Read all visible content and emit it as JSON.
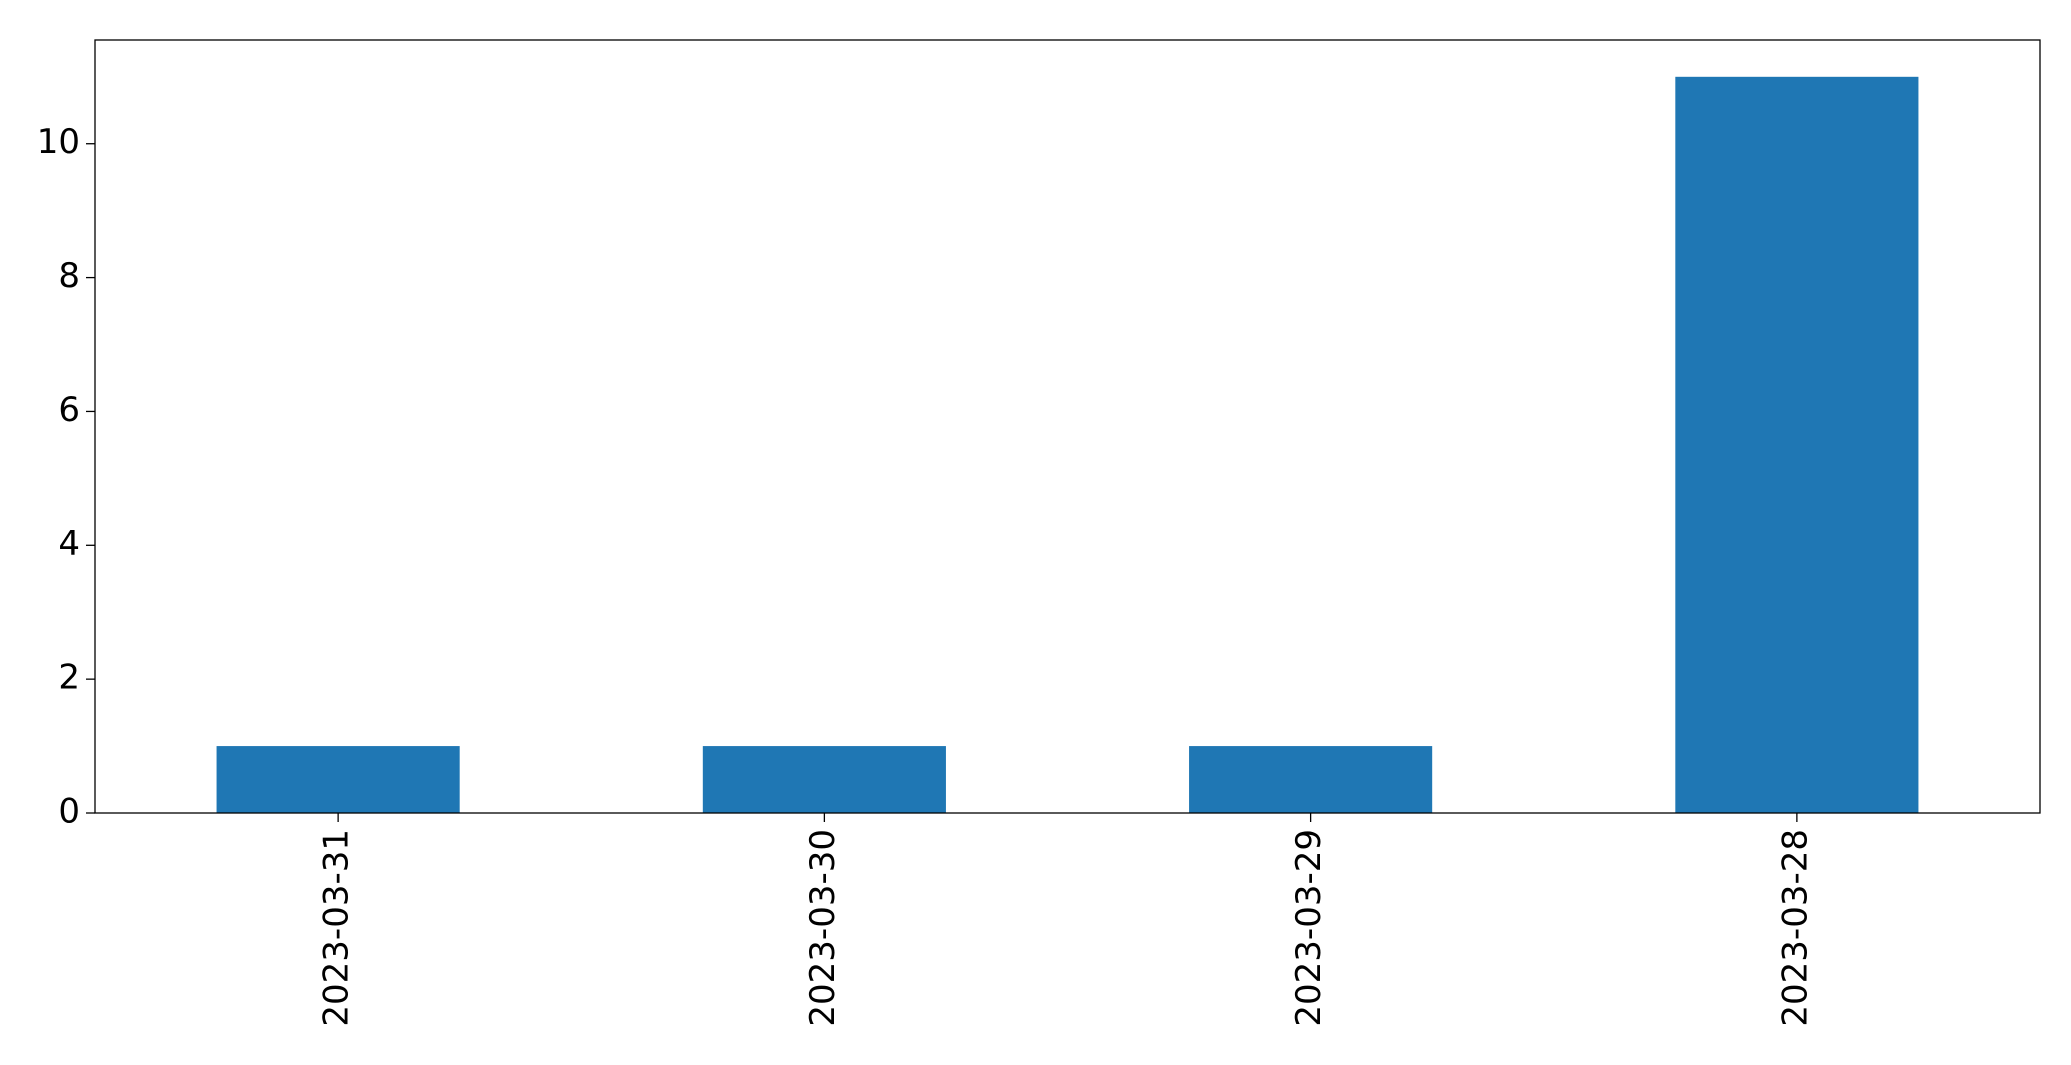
{
  "chart_data": {
    "type": "bar",
    "categories": [
      "2023-03-31",
      "2023-03-30",
      "2023-03-29",
      "2023-03-28"
    ],
    "values": [
      1,
      1,
      1,
      11
    ],
    "title": "",
    "xlabel": "",
    "ylabel": "",
    "ylim": [
      0,
      11.55
    ],
    "yticks": [
      0,
      2,
      4,
      6,
      8,
      10
    ],
    "grid": false,
    "legend": "none",
    "bar_color": "#1f77b4"
  }
}
